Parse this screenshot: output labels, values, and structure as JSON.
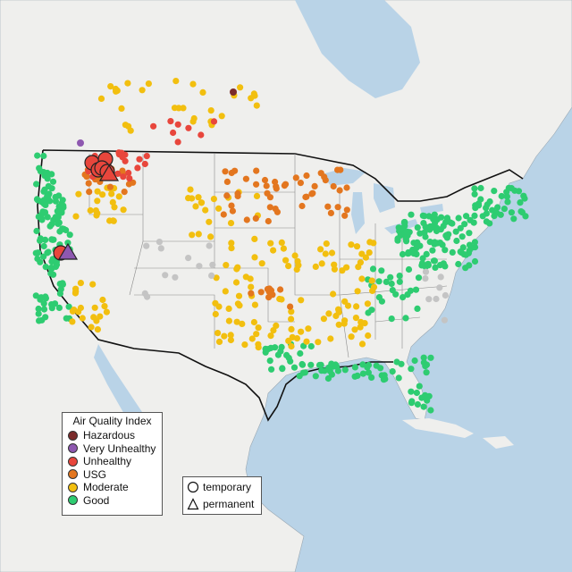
{
  "map": {
    "title": "",
    "colors": {
      "ocean": "#b9d3e7",
      "land": "#efefed",
      "land_canada": "#ebeae7",
      "hazardous": "#7b2b2b",
      "very_unhealthy": "#8e58b0",
      "unhealthy": "#e8463c",
      "usg": "#e3761f",
      "moderate": "#f2bf0f",
      "good": "#2ecc71",
      "unknown": "#c4c4c4"
    }
  },
  "legend_aqi": {
    "title": "Air Quality Index",
    "items": [
      {
        "label": "Hazardous",
        "color": "#7b2b2b"
      },
      {
        "label": "Very Unhealthy",
        "color": "#8e58b0"
      },
      {
        "label": "Unhealthy",
        "color": "#e8463c"
      },
      {
        "label": "USG",
        "color": "#e3761f"
      },
      {
        "label": "Moderate",
        "color": "#f2bf0f"
      },
      {
        "label": "Good",
        "color": "#2ecc71"
      }
    ]
  },
  "legend_shape": {
    "items": [
      {
        "label": "temporary",
        "shape": "circle"
      },
      {
        "label": "permanent",
        "shape": "triangle"
      }
    ]
  }
}
